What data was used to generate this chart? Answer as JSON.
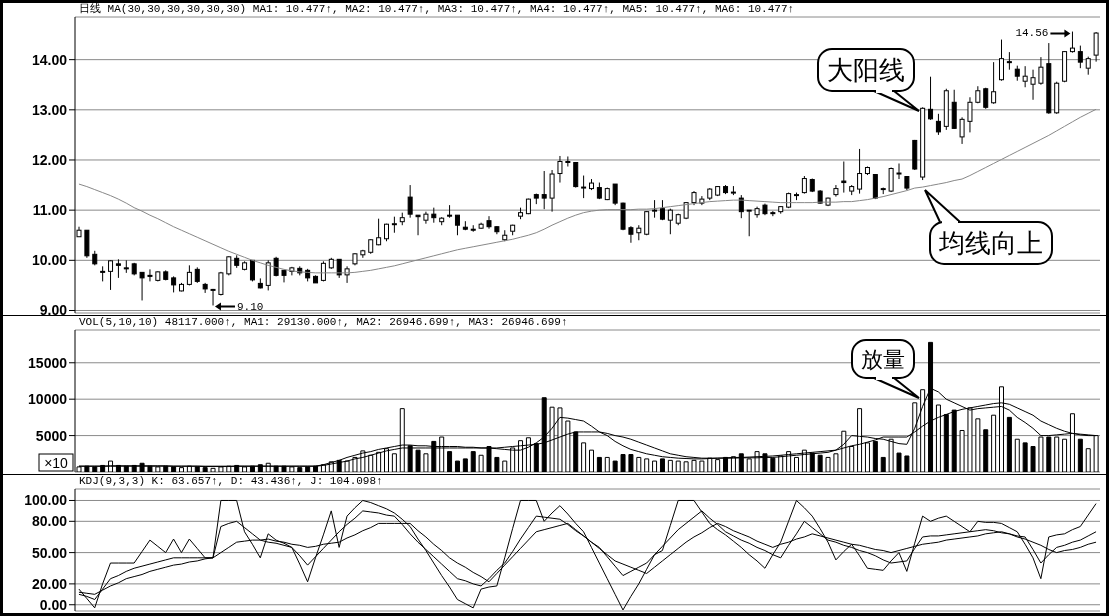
{
  "chart_data": [
    {
      "type": "candlestick",
      "title": "日线 MA(30,30,30,30,30,30) MA1: 10.477↑, MA2: 10.477↑, MA3: 10.477↑, MA4: 10.477↑, MA5: 10.477↑, MA6: 10.477↑",
      "color": "#000000",
      "categories": [
        null,
        null,
        null,
        null,
        null,
        null,
        null,
        null,
        null,
        null,
        null,
        null,
        null,
        null,
        null,
        null,
        null,
        null,
        null,
        null,
        null,
        null,
        null,
        null,
        null,
        null,
        null,
        null,
        null,
        null,
        null,
        null,
        null,
        null,
        null,
        null,
        null,
        null,
        null,
        null,
        null,
        null,
        null,
        null,
        null,
        null,
        null,
        null,
        null,
        null,
        null,
        null,
        null,
        null,
        null,
        null,
        null,
        null,
        null,
        null,
        null,
        null,
        null,
        null,
        null,
        null,
        null,
        null,
        null,
        null,
        null,
        null,
        null,
        null,
        null,
        null,
        null,
        null,
        null,
        null,
        null,
        null,
        null,
        null,
        null,
        null,
        null,
        null,
        null,
        null,
        null,
        null,
        null,
        null,
        null,
        null,
        null,
        null,
        null,
        null,
        null,
        null,
        null,
        null,
        null,
        null,
        null,
        null,
        null,
        null,
        null,
        null,
        null,
        null,
        null,
        null,
        null,
        null,
        null,
        null,
        null,
        null,
        null,
        null,
        null,
        null,
        null,
        null,
        null,
        null
      ],
      "ohlc": [
        [
          10.47,
          10.67,
          10.47,
          10.6
        ],
        [
          10.6,
          10.6,
          10.05,
          10.09
        ],
        [
          10.12,
          10.19,
          9.9,
          9.93
        ],
        [
          9.78,
          9.88,
          9.58,
          9.76
        ],
        [
          9.78,
          10.0,
          9.41,
          9.99
        ],
        [
          9.93,
          10.02,
          9.65,
          9.9
        ],
        [
          9.85,
          10.0,
          9.75,
          9.83
        ],
        [
          9.93,
          9.95,
          9.7,
          9.73
        ],
        [
          9.76,
          9.76,
          9.2,
          9.65
        ],
        [
          9.7,
          9.82,
          9.58,
          9.68
        ],
        [
          9.6,
          9.78,
          9.58,
          9.77
        ],
        [
          9.77,
          9.8,
          9.6,
          9.62
        ],
        [
          9.65,
          9.68,
          9.36,
          9.51
        ],
        [
          9.39,
          9.55,
          9.38,
          9.52
        ],
        [
          9.52,
          9.9,
          9.5,
          9.76
        ],
        [
          9.82,
          9.86,
          9.55,
          9.58
        ],
        [
          9.52,
          9.55,
          9.35,
          9.43
        ],
        [
          9.42,
          9.43,
          9.1,
          9.42
        ],
        [
          9.32,
          9.77,
          9.3,
          9.75
        ],
        [
          9.73,
          10.08,
          9.7,
          10.07
        ],
        [
          10.04,
          10.1,
          9.85,
          9.9
        ],
        [
          9.82,
          9.98,
          9.8,
          9.95
        ],
        [
          10.0,
          10.0,
          9.58,
          9.61
        ],
        [
          9.54,
          9.64,
          9.44,
          9.45
        ],
        [
          9.5,
          10.0,
          9.4,
          9.95
        ],
        [
          10.04,
          10.07,
          9.68,
          9.7
        ],
        [
          9.8,
          9.8,
          9.56,
          9.7
        ],
        [
          9.78,
          9.87,
          9.7,
          9.85
        ],
        [
          9.84,
          9.88,
          9.7,
          9.75
        ],
        [
          9.8,
          9.83,
          9.58,
          9.65
        ],
        [
          9.68,
          9.7,
          9.55,
          9.55
        ],
        [
          9.6,
          9.98,
          9.58,
          9.94
        ],
        [
          9.85,
          10.05,
          9.83,
          10.02
        ],
        [
          10.02,
          10.02,
          9.65,
          9.71
        ],
        [
          9.71,
          9.88,
          9.55,
          9.83
        ],
        [
          9.93,
          10.14,
          9.9,
          10.13
        ],
        [
          10.11,
          10.21,
          10.05,
          10.19
        ],
        [
          10.16,
          10.42,
          10.13,
          10.41
        ],
        [
          10.31,
          10.83,
          10.3,
          10.45
        ],
        [
          10.43,
          10.73,
          10.38,
          10.72
        ],
        [
          10.72,
          10.87,
          10.55,
          10.73
        ],
        [
          10.77,
          10.95,
          10.7,
          10.85
        ],
        [
          11.26,
          11.5,
          10.85,
          10.92
        ],
        [
          10.9,
          10.9,
          10.5,
          10.87
        ],
        [
          10.8,
          10.97,
          10.73,
          10.92
        ],
        [
          10.92,
          11.05,
          10.75,
          10.85
        ],
        [
          10.77,
          10.86,
          10.7,
          10.84
        ],
        [
          10.9,
          11.1,
          10.85,
          10.89
        ],
        [
          10.9,
          10.9,
          10.5,
          10.7
        ],
        [
          10.66,
          10.78,
          10.6,
          10.62
        ],
        [
          10.62,
          10.7,
          10.57,
          10.61
        ],
        [
          10.64,
          10.75,
          10.63,
          10.72
        ],
        [
          10.79,
          10.88,
          10.63,
          10.67
        ],
        [
          10.67,
          10.68,
          10.52,
          10.57
        ],
        [
          10.41,
          10.6,
          10.38,
          10.5
        ],
        [
          10.58,
          10.71,
          10.5,
          10.7
        ],
        [
          10.88,
          11.05,
          10.82,
          10.95
        ],
        [
          10.93,
          11.23,
          10.92,
          11.22
        ],
        [
          11.31,
          11.33,
          11.12,
          11.24
        ],
        [
          11.31,
          11.78,
          11.02,
          11.24
        ],
        [
          11.24,
          11.8,
          10.97,
          11.72
        ],
        [
          11.73,
          12.08,
          11.55,
          11.97
        ],
        [
          11.96,
          12.07,
          11.87,
          11.97
        ],
        [
          11.95,
          11.95,
          11.45,
          11.47
        ],
        [
          11.46,
          11.69,
          11.24,
          11.46
        ],
        [
          11.43,
          11.62,
          11.4,
          11.54
        ],
        [
          11.45,
          11.55,
          11.22,
          11.24
        ],
        [
          11.21,
          11.45,
          11.2,
          11.43
        ],
        [
          11.52,
          11.52,
          11.1,
          11.14
        ],
        [
          11.14,
          11.15,
          10.6,
          10.62
        ],
        [
          10.65,
          10.68,
          10.35,
          10.52
        ],
        [
          10.55,
          10.7,
          10.4,
          10.64
        ],
        [
          10.52,
          10.98,
          10.5,
          10.97
        ],
        [
          11.0,
          11.2,
          10.85,
          11.0
        ],
        [
          11.03,
          11.2,
          10.8,
          10.82
        ],
        [
          10.8,
          11.03,
          10.52,
          11.0
        ],
        [
          10.74,
          10.93,
          10.7,
          10.91
        ],
        [
          10.84,
          11.16,
          10.82,
          11.15
        ],
        [
          11.15,
          11.38,
          11.1,
          11.35
        ],
        [
          11.14,
          11.28,
          11.1,
          11.22
        ],
        [
          11.24,
          11.44,
          11.2,
          11.42
        ],
        [
          11.3,
          11.48,
          11.28,
          11.47
        ],
        [
          11.47,
          11.5,
          11.32,
          11.35
        ],
        [
          11.36,
          11.48,
          11.3,
          11.36
        ],
        [
          11.24,
          11.3,
          10.84,
          10.97
        ],
        [
          10.99,
          11.0,
          10.48,
          11.0
        ],
        [
          10.91,
          11.07,
          10.85,
          11.03
        ],
        [
          11.1,
          11.13,
          10.9,
          10.93
        ],
        [
          10.95,
          10.98,
          10.88,
          10.94
        ],
        [
          10.97,
          11.08,
          10.93,
          11.07
        ],
        [
          11.06,
          11.35,
          11.04,
          11.33
        ],
        [
          11.3,
          11.35,
          11.2,
          11.31
        ],
        [
          11.35,
          11.68,
          11.33,
          11.63
        ],
        [
          11.61,
          11.63,
          11.36,
          11.38
        ],
        [
          11.38,
          11.4,
          11.13,
          11.14
        ],
        [
          11.1,
          11.25,
          11.08,
          11.24
        ],
        [
          11.31,
          11.5,
          11.27,
          11.43
        ],
        [
          11.58,
          11.97,
          11.35,
          11.55
        ],
        [
          11.38,
          11.5,
          11.3,
          11.47
        ],
        [
          11.42,
          12.22,
          11.33,
          11.73
        ],
        [
          11.73,
          11.87,
          11.7,
          11.85
        ],
        [
          11.71,
          11.72,
          11.22,
          11.24
        ],
        [
          11.41,
          11.45,
          11.32,
          11.43
        ],
        [
          11.38,
          11.85,
          11.36,
          11.83
        ],
        [
          11.73,
          11.93,
          11.62,
          11.74
        ],
        [
          11.67,
          11.68,
          11.4,
          11.44
        ],
        [
          12.39,
          12.4,
          11.8,
          11.82
        ],
        [
          11.66,
          13.05,
          11.6,
          13.03
        ],
        [
          13.01,
          13.66,
          12.8,
          12.82
        ],
        [
          12.77,
          12.92,
          12.5,
          12.56
        ],
        [
          12.67,
          13.42,
          12.6,
          13.38
        ],
        [
          13.15,
          13.4,
          12.62,
          12.63
        ],
        [
          12.46,
          12.85,
          12.32,
          12.81
        ],
        [
          12.77,
          13.25,
          12.55,
          13.15
        ],
        [
          13.15,
          13.47,
          13.13,
          13.38
        ],
        [
          13.42,
          13.44,
          13.02,
          13.05
        ],
        [
          13.14,
          13.95,
          13.12,
          13.36
        ],
        [
          13.6,
          14.4,
          13.58,
          14.02
        ],
        [
          13.96,
          14.15,
          13.8,
          13.95
        ],
        [
          13.81,
          13.88,
          13.58,
          13.67
        ],
        [
          13.57,
          13.87,
          13.45,
          13.67
        ],
        [
          13.51,
          13.8,
          13.2,
          13.64
        ],
        [
          13.53,
          14.05,
          13.5,
          13.85
        ],
        [
          13.92,
          14.33,
          12.92,
          12.94
        ],
        [
          12.94,
          13.56,
          12.92,
          13.53
        ],
        [
          13.57,
          14.17,
          13.55,
          14.16
        ],
        [
          14.16,
          14.56,
          14.14,
          14.23
        ],
        [
          14.16,
          14.28,
          13.83,
          13.95
        ],
        [
          13.83,
          14.06,
          13.7,
          14.02
        ],
        [
          14.09,
          14.55,
          13.96,
          14.53
        ]
      ],
      "series": [
        {
          "type": "line",
          "color": "#888888",
          "values": [
            11.52,
            11.47,
            11.41,
            11.35,
            11.29,
            11.22,
            11.14,
            11.05,
            10.98,
            10.9,
            10.83,
            10.75,
            10.67,
            10.6,
            10.53,
            10.46,
            10.39,
            10.32,
            10.25,
            10.18,
            10.12,
            10.06,
            10.0,
            9.95,
            9.9,
            9.86,
            9.82,
            9.79,
            9.77,
            9.76,
            9.75,
            9.75,
            9.75,
            9.75,
            9.75,
            9.76,
            9.78,
            9.8,
            9.83,
            9.86,
            9.89,
            9.93,
            9.97,
            10.01,
            10.05,
            10.09,
            10.13,
            10.17,
            10.21,
            10.24,
            10.27,
            10.3,
            10.33,
            10.36,
            10.39,
            10.42,
            10.46,
            10.5,
            10.55,
            10.62,
            10.7,
            10.77,
            10.84,
            10.9,
            10.95,
            10.98,
            11.0,
            11.01,
            11.01,
            11.01,
            11.01,
            11.02,
            11.02,
            11.03,
            11.05,
            11.07,
            11.09,
            11.11,
            11.13,
            11.15,
            11.17,
            11.18,
            11.19,
            11.2,
            11.2,
            11.19,
            11.18,
            11.17,
            11.16,
            11.15,
            11.15,
            11.15,
            11.15,
            11.15,
            11.16,
            11.16,
            11.16,
            11.17,
            11.17,
            11.19,
            11.21,
            11.24,
            11.27,
            11.31,
            11.35,
            11.39,
            11.44,
            11.46,
            11.49,
            11.52,
            11.55,
            11.59,
            11.62,
            11.69,
            11.77,
            11.85,
            11.93,
            12.01,
            12.09,
            12.17,
            12.25,
            12.33,
            12.41,
            12.49,
            12.58,
            12.67,
            12.76,
            12.85,
            12.93,
            13.01
          ]
        }
      ],
      "ylim": [
        8.95,
        14.85
      ],
      "yticks": [
        {
          "value": 9,
          "label": "9.00"
        },
        {
          "value": 10,
          "label": "10.00"
        },
        {
          "value": 11,
          "label": "11.00"
        },
        {
          "value": 12,
          "label": "12.00"
        },
        {
          "value": 13,
          "label": "13.00"
        },
        {
          "value": 14,
          "label": "14.00"
        }
      ],
      "grid": "y",
      "tick_labels": "y",
      "annotations": [
        "大阳线",
        "均线向上",
        "14.56",
        "9.10"
      ]
    },
    {
      "type": "bar",
      "title": "VOL(5,10,10) 48117.000↑, MA1: 29130.000↑, MA2: 26946.699↑, MA3: 26946.699↑",
      "categories": [
        null,
        null,
        null,
        null,
        null,
        null,
        null,
        null,
        null,
        null,
        null,
        null,
        null,
        null,
        null,
        null,
        null,
        null,
        null,
        null,
        null,
        null,
        null,
        null,
        null,
        null,
        null,
        null,
        null,
        null,
        null,
        null,
        null,
        null,
        null,
        null,
        null,
        null,
        null,
        null,
        null,
        null,
        null,
        null,
        null,
        null,
        null,
        null,
        null,
        null,
        null,
        null,
        null,
        null,
        null,
        null,
        null,
        null,
        null,
        null,
        null,
        null,
        null,
        null,
        null,
        null,
        null,
        null,
        null,
        null,
        null,
        null,
        null,
        null,
        null,
        null,
        null,
        null,
        null,
        null,
        null,
        null,
        null,
        null,
        null,
        null,
        null,
        null,
        null,
        null,
        null,
        null,
        null,
        null,
        null,
        null,
        null,
        null,
        null,
        null,
        null,
        null,
        null,
        null,
        null,
        null,
        null,
        null,
        null,
        null,
        null,
        null,
        null,
        null,
        null,
        null,
        null,
        null,
        null,
        null,
        null,
        null,
        null,
        null,
        null,
        null,
        null,
        null,
        null,
        null
      ],
      "series": [
        {
          "values": [
            700,
            800,
            700,
            900,
            1500,
            900,
            800,
            900,
            1200,
            800,
            700,
            800,
            700,
            600,
            800,
            700,
            600,
            500,
            700,
            800,
            900,
            700,
            800,
            1000,
            1200,
            800,
            800,
            700,
            600,
            700,
            800,
            1000,
            1400,
            1600,
            1500,
            2000,
            2900,
            2300,
            2700,
            3200,
            2500,
            8700,
            3600,
            3000,
            2500,
            4200,
            4800,
            2800,
            1500,
            1800,
            2800,
            2300,
            3500,
            2000,
            1500,
            3300,
            4300,
            4700,
            3900,
            10200,
            8900,
            8800,
            7000,
            5500,
            4000,
            3000,
            2000,
            2000,
            1500,
            2400,
            2400,
            2000,
            1800,
            1500,
            1800,
            1600,
            1500,
            1400,
            1600,
            1500,
            1900,
            1700,
            2000,
            2100,
            2500,
            1800,
            2800,
            2500,
            1900,
            2200,
            2800,
            2000,
            3000,
            2600,
            2300,
            2000,
            2500,
            5600,
            3500,
            8700,
            4000,
            4200,
            2000,
            4500,
            2600,
            2200,
            9500,
            11300,
            17800,
            9200,
            7900,
            8500,
            5700,
            8800,
            7300,
            5800,
            7800,
            11700,
            7500,
            4500,
            4000,
            3500,
            4800,
            4800,
            4800,
            4500,
            8000,
            4500,
            3200,
            5000
          ],
          "colors": [
            "#ffffff",
            "#000000",
            "#000000",
            "#000000",
            "#ffffff",
            "#000000",
            "#000000",
            "#000000",
            "#000000",
            "#000000",
            "#ffffff",
            "#000000",
            "#000000",
            "#ffffff",
            "#ffffff",
            "#000000",
            "#000000",
            "#ffffff",
            "#ffffff",
            "#ffffff",
            "#000000",
            "#ffffff",
            "#000000",
            "#000000",
            "#ffffff",
            "#000000",
            "#000000",
            "#ffffff",
            "#000000",
            "#000000",
            "#000000",
            "#ffffff",
            "#ffffff",
            "#000000",
            "#ffffff",
            "#ffffff",
            "#ffffff",
            "#ffffff",
            "#ffffff",
            "#ffffff",
            "#ffffff",
            "#ffffff",
            "#000000",
            "#000000",
            "#ffffff",
            "#000000",
            "#ffffff",
            "#000000",
            "#000000",
            "#000000",
            "#000000",
            "#ffffff",
            "#000000",
            "#000000",
            "#ffffff",
            "#ffffff",
            "#ffffff",
            "#ffffff",
            "#000000",
            "#000000",
            "#ffffff",
            "#ffffff",
            "#ffffff",
            "#000000",
            "#ffffff",
            "#ffffff",
            "#000000",
            "#ffffff",
            "#000000",
            "#000000",
            "#000000",
            "#ffffff",
            "#ffffff",
            "#ffffff",
            "#000000",
            "#ffffff",
            "#ffffff",
            "#ffffff",
            "#ffffff",
            "#ffffff",
            "#ffffff",
            "#ffffff",
            "#000000",
            "#ffffff",
            "#000000",
            "#ffffff",
            "#ffffff",
            "#000000",
            "#000000",
            "#ffffff",
            "#ffffff",
            "#ffffff",
            "#ffffff",
            "#000000",
            "#000000",
            "#ffffff",
            "#ffffff",
            "#ffffff",
            "#ffffff",
            "#ffffff",
            "#ffffff",
            "#000000",
            "#000000",
            "#ffffff",
            "#000000",
            "#000000",
            "#ffffff",
            "#ffffff",
            "#000000",
            "#ffffff",
            "#000000",
            "#000000",
            "#ffffff",
            "#ffffff",
            "#ffffff",
            "#000000",
            "#ffffff",
            "#ffffff",
            "#000000",
            "#ffffff",
            "#000000",
            "#000000",
            "#ffffff",
            "#000000",
            "#ffffff",
            "#ffffff",
            "#ffffff",
            "#000000",
            "#ffffff",
            "#ffffff"
          ]
        },
        {
          "type": "line",
          "color": "#000000",
          "values": [
            800,
            800,
            800,
            800,
            850,
            850,
            850,
            850,
            850,
            850,
            850,
            850,
            800,
            800,
            800,
            800,
            750,
            750,
            750,
            750,
            800,
            800,
            800,
            800,
            800,
            800,
            800,
            800,
            800,
            800,
            800,
            1000,
            1300,
            1600,
            2000,
            2300,
            2600,
            2800,
            3100,
            3300,
            3500,
            3700,
            3700,
            3600,
            3600,
            3500,
            3500,
            3500,
            3500,
            3400,
            3400,
            3300,
            3300,
            3200,
            3100,
            3000,
            3000,
            3400,
            4000,
            4800,
            6000,
            7500,
            7400,
            7200,
            7000,
            6300,
            5500,
            5000,
            4200,
            3600,
            3100,
            2800,
            2500,
            2300,
            2100,
            2000,
            1900,
            1850,
            1800,
            1800,
            1850,
            1900,
            1950,
            2000,
            2000,
            2050,
            2100,
            2150,
            2200,
            2300,
            2400,
            2500,
            2600,
            2700,
            2800,
            2900,
            3000,
            3800,
            5000,
            4900,
            4800,
            4600,
            4500,
            4200,
            3900,
            3800,
            6000,
            9000,
            11500,
            11000,
            10000,
            9500,
            9000,
            8500,
            8700,
            8800,
            8900,
            9000,
            8500,
            7500,
            6800,
            6000,
            5000,
            5000,
            5100,
            5200,
            5300,
            5200,
            5100,
            5000
          ]
        },
        {
          "type": "line",
          "color": "#000000",
          "values": [
            800,
            800,
            800,
            800,
            800,
            800,
            800,
            800,
            800,
            800,
            800,
            800,
            800,
            800,
            800,
            800,
            800,
            800,
            800,
            800,
            800,
            800,
            800,
            800,
            800,
            800,
            800,
            800,
            800,
            800,
            800,
            900,
            1100,
            1300,
            1500,
            1800,
            2000,
            2300,
            2600,
            2900,
            3100,
            3300,
            3300,
            3300,
            3300,
            3300,
            3300,
            3300,
            3300,
            3300,
            3300,
            3300,
            3300,
            3300,
            3400,
            3500,
            3600,
            3700,
            3800,
            4000,
            4400,
            4800,
            5200,
            5500,
            5500,
            5500,
            5500,
            5300,
            5000,
            4800,
            4500,
            4100,
            3700,
            3300,
            2900,
            2500,
            2300,
            2100,
            2000,
            1900,
            1900,
            1900,
            1900,
            1900,
            1950,
            1950,
            1950,
            2000,
            2000,
            2100,
            2200,
            2300,
            2400,
            2500,
            2600,
            2700,
            3000,
            3300,
            3600,
            3800,
            4100,
            4400,
            4800,
            4800,
            4800,
            4800,
            5500,
            6300,
            7000,
            7500,
            7900,
            8300,
            8600,
            8800,
            9000,
            9200,
            9400,
            9500,
            9300,
            8800,
            8300,
            7800,
            7000,
            6500,
            6000,
            5600,
            5300,
            5100,
            5000,
            5000
          ]
        }
      ],
      "ylim": [
        0,
        19500
      ],
      "yticks": [
        5000,
        10000,
        15000
      ],
      "grid": "y",
      "tick_labels": "y",
      "annotations": [
        "放量",
        "×10"
      ]
    },
    {
      "type": "line",
      "title": "KDJ(9,3,3) K: 63.657↑, D: 43.436↑, J: 104.098↑",
      "categories": [
        null,
        null,
        null,
        null,
        null,
        null,
        null,
        null,
        null,
        null,
        null,
        null,
        null,
        null,
        null,
        null,
        null,
        null,
        null,
        null,
        null,
        null,
        null,
        null,
        null,
        null,
        null,
        null,
        null,
        null,
        null,
        null,
        null,
        null,
        null,
        null,
        null,
        null,
        null,
        null,
        null,
        null,
        null,
        null,
        null,
        null,
        null,
        null,
        null,
        null,
        null,
        null,
        null,
        null,
        null,
        null,
        null,
        null,
        null,
        null,
        null,
        null,
        null,
        null,
        null,
        null,
        null,
        null,
        null,
        null,
        null,
        null,
        null,
        null,
        null,
        null,
        null,
        null,
        null,
        null,
        null,
        null,
        null,
        null,
        null,
        null,
        null,
        null,
        null,
        null,
        null,
        null,
        null,
        null,
        null,
        null,
        null,
        null,
        null,
        null,
        null,
        null,
        null,
        null,
        null,
        null,
        null,
        null,
        null,
        null,
        null,
        null,
        null,
        null,
        null,
        null,
        null,
        null,
        null,
        null,
        null,
        null,
        null,
        null,
        null,
        null,
        null,
        null,
        null,
        null
      ],
      "series": [
        {
          "color": "#000000",
          "values": [
            15,
            6,
            -3,
            20,
            40,
            40,
            40,
            40,
            51,
            62,
            56,
            50,
            63,
            50,
            63,
            54,
            45,
            45,
            100,
            100,
            100,
            70,
            58,
            45,
            68,
            62,
            59,
            55,
            39,
            22,
            45,
            67,
            90,
            55,
            85,
            93,
            100,
            98,
            95,
            92,
            88,
            82,
            75,
            63,
            52,
            40,
            28,
            17,
            5,
            1,
            -3,
            15,
            17,
            18,
            45,
            73,
            100,
            100,
            100,
            80,
            88,
            95,
            87,
            78,
            70,
            55,
            40,
            25,
            10,
            -5,
            8,
            20,
            34,
            48,
            52,
            76,
            100,
            100,
            100,
            89,
            78,
            72,
            67,
            61,
            55,
            48,
            42,
            35,
            48,
            60,
            80,
            100,
            93,
            85,
            73,
            60,
            43,
            51,
            58,
            47,
            35,
            34,
            33,
            42,
            50,
            32,
            59,
            85,
            80,
            83,
            85,
            80,
            75,
            70,
            80,
            79,
            79,
            78,
            74,
            70,
            58,
            45,
            25,
            65,
            67,
            68,
            72,
            75,
            86,
            97
          ]
        },
        {
          "color": "#000000",
          "values": [
            10,
            8,
            5,
            15,
            25,
            28,
            32,
            35,
            37,
            39,
            41,
            43,
            45,
            45,
            45,
            45,
            45,
            45,
            75,
            78,
            80,
            74,
            68,
            62,
            60,
            59,
            57,
            55,
            47,
            38,
            46,
            54,
            62,
            70,
            77,
            83,
            90,
            89,
            88,
            86,
            85,
            77,
            68,
            60,
            53,
            46,
            39,
            32,
            25,
            23,
            20,
            18,
            25,
            33,
            40,
            51,
            63,
            74,
            85,
            84,
            83,
            82,
            77,
            71,
            66,
            60,
            55,
            46,
            37,
            28,
            32,
            36,
            40,
            48,
            56,
            64,
            72,
            78,
            84,
            90,
            83,
            77,
            70,
            66,
            62,
            59,
            55,
            52,
            48,
            45,
            57,
            68,
            80,
            74,
            68,
            62,
            60,
            57,
            55,
            52,
            50,
            47,
            43,
            40,
            41,
            42,
            54,
            65,
            66,
            66,
            67,
            68,
            69,
            70,
            71,
            72,
            71,
            69,
            68,
            66,
            65,
            53,
            40,
            48,
            55,
            57,
            60,
            62,
            66,
            70
          ]
        },
        {
          "color": "#000000",
          "values": [
            12,
            11,
            10,
            14,
            18,
            21,
            25,
            27,
            29,
            32,
            34,
            36,
            38,
            39,
            41,
            42,
            44,
            45,
            50,
            55,
            60,
            61,
            62,
            62,
            63,
            61,
            60,
            58,
            57,
            55,
            56,
            58,
            59,
            60,
            64,
            67,
            71,
            74,
            78,
            78,
            78,
            78,
            78,
            71,
            65,
            58,
            52,
            45,
            40,
            36,
            31,
            27,
            22,
            30,
            38,
            46,
            54,
            62,
            70,
            72,
            74,
            76,
            78,
            72,
            66,
            60,
            54,
            48,
            42,
            39,
            36,
            33,
            30,
            36,
            42,
            48,
            54,
            60,
            65,
            69,
            74,
            78,
            75,
            71,
            68,
            65,
            61,
            58,
            55,
            58,
            60,
            63,
            65,
            68,
            66,
            64,
            62,
            60,
            58,
            57,
            55,
            53,
            52,
            50,
            52,
            54,
            56,
            58,
            59,
            60,
            62,
            63,
            64,
            65,
            66,
            68,
            69,
            70,
            68,
            65,
            63,
            60,
            57,
            53,
            50,
            52,
            53,
            55,
            58,
            60
          ]
        }
      ],
      "ylim": [
        -6,
        111
      ],
      "yticks": [
        {
          "value": 0,
          "label": "0.00"
        },
        {
          "value": 20,
          "label": "20.00"
        },
        {
          "value": 50,
          "label": "50.00"
        },
        {
          "value": 80,
          "label": "80.00"
        },
        {
          "value": 100,
          "label": "100.00"
        }
      ],
      "grid": "y",
      "tick_labels": "y"
    }
  ]
}
